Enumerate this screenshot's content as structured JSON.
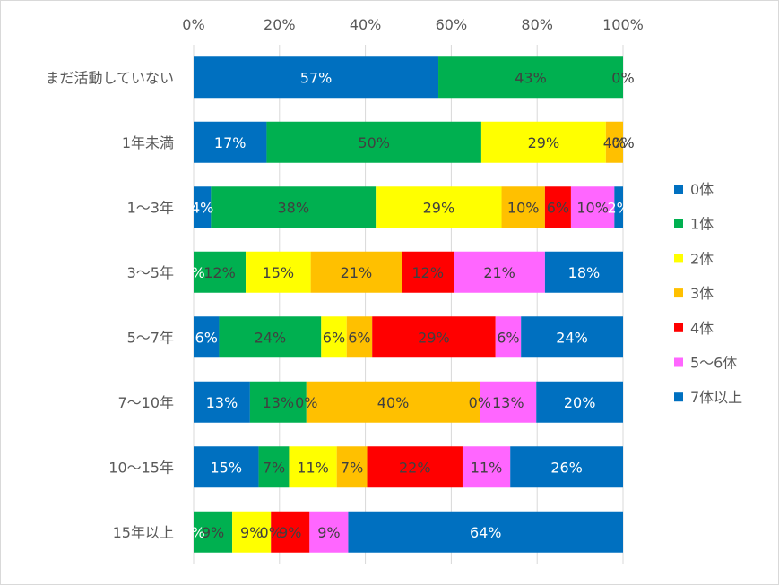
{
  "chart_data": {
    "type": "bar",
    "orientation": "horizontal",
    "stacked": "percent",
    "xlim": [
      0,
      100
    ],
    "x_ticks": [
      "0%",
      "20%",
      "40%",
      "60%",
      "80%",
      "100%"
    ],
    "x_tick_values": [
      0,
      20,
      40,
      60,
      80,
      100
    ],
    "grid": true,
    "legend_position": "right",
    "categories": [
      "まだ活動していない",
      "1年未満",
      "1～3年",
      "3～5年",
      "5～7年",
      "7～10年",
      "10～15年",
      "15年以上"
    ],
    "series": [
      {
        "name": "0体",
        "color": "#0070c0",
        "values": [
          57,
          17,
          4,
          0,
          6,
          13,
          15,
          0
        ],
        "labels": [
          "57%",
          "17%",
          "4%",
          "0%",
          "6%",
          "13%",
          "15%",
          "0%"
        ]
      },
      {
        "name": "1体",
        "color": "#00b050",
        "values": [
          43,
          50,
          38,
          12,
          24,
          13,
          7,
          9
        ],
        "labels": [
          "43%",
          "50%",
          "38%",
          "12%",
          "24%",
          "13%",
          "7%",
          "9%"
        ]
      },
      {
        "name": "2体",
        "color": "#ffff00",
        "values": [
          0,
          29,
          29,
          15,
          6,
          0,
          11,
          9
        ],
        "labels": [
          "0%",
          "29%",
          "29%",
          "15%",
          "6%",
          "0%",
          "11%",
          "9%"
        ]
      },
      {
        "name": "3体",
        "color": "#ffc000",
        "values": [
          0,
          4,
          10,
          21,
          6,
          40,
          7,
          0
        ],
        "labels": [
          "",
          "4%",
          "10%",
          "21%",
          "6%",
          "40%",
          "7%",
          "0%"
        ]
      },
      {
        "name": "4体",
        "color": "#ff0000",
        "values": [
          0,
          0,
          6,
          12,
          29,
          0,
          22,
          9
        ],
        "labels": [
          "",
          "0%",
          "6%",
          "12%",
          "29%",
          "0%",
          "22%",
          "9%"
        ]
      },
      {
        "name": "5～6体",
        "color": "#ff66ff",
        "values": [
          0,
          0,
          10,
          21,
          6,
          13,
          11,
          9
        ],
        "labels": [
          "",
          "",
          "10%",
          "21%",
          "6%",
          "13%",
          "11%",
          "9%"
        ]
      },
      {
        "name": "7体以上",
        "color": "#0070c0",
        "values": [
          0,
          0,
          2,
          18,
          24,
          20,
          26,
          64
        ],
        "labels": [
          "",
          "",
          "2%",
          "18%",
          "24%",
          "20%",
          "26%",
          "64%"
        ]
      }
    ],
    "label_text_colors": {
      "#0070c0": "#ffffff",
      "#00b050": "#404040",
      "#ffff00": "#404040",
      "#ffc000": "#404040",
      "#ff0000": "#404040",
      "#ff66ff": "#404040"
    }
  }
}
